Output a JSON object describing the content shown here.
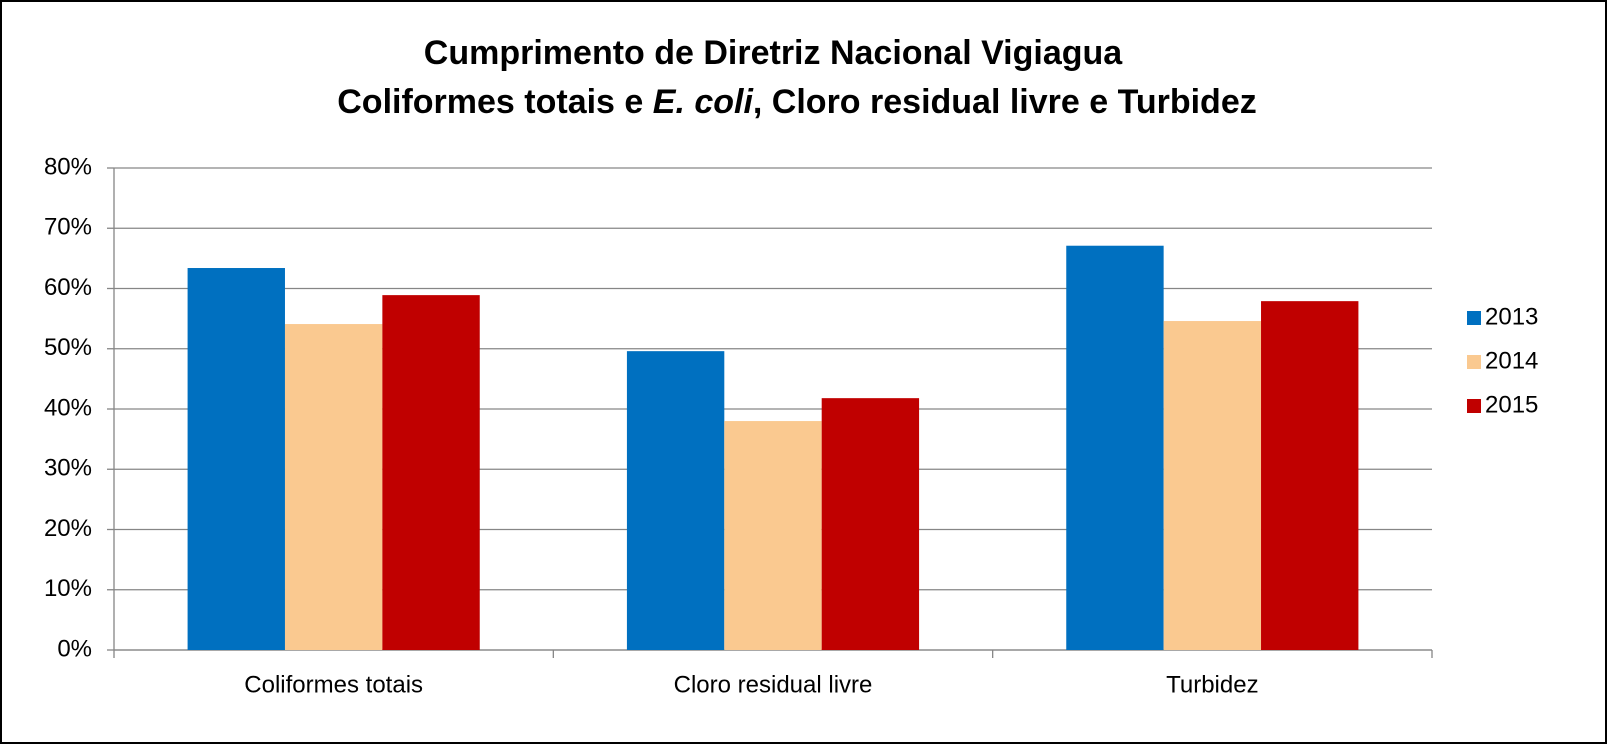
{
  "chart_data": {
    "type": "bar",
    "title": {
      "line1": "Cumprimento de Diretriz Nacional Vigiagua",
      "line2": [
        "Coliformes totais e ",
        "E. coli",
        ", Cloro residual livre e Turbidez"
      ]
    },
    "categories": [
      "Coliformes totais",
      "Cloro residual livre",
      "Turbidez"
    ],
    "series": [
      {
        "name": "2013",
        "color": "#0070c0",
        "values": [
          63.4,
          49.6,
          67.1
        ]
      },
      {
        "name": "2014",
        "color": "#fac990",
        "values": [
          54.1,
          38.0,
          54.6
        ]
      },
      {
        "name": "2015",
        "color": "#c00000",
        "values": [
          58.9,
          41.8,
          57.9
        ]
      }
    ],
    "ylim": [
      0,
      80
    ],
    "yticks": [
      {
        "value": 0,
        "label": "0%"
      },
      {
        "value": 10,
        "label": "10%"
      },
      {
        "value": 20,
        "label": "20%"
      },
      {
        "value": 30,
        "label": "30%"
      },
      {
        "value": 40,
        "label": "40%"
      },
      {
        "value": 50,
        "label": "50%"
      },
      {
        "value": 60,
        "label": "60%"
      },
      {
        "value": 70,
        "label": "70%"
      },
      {
        "value": 80,
        "label": "80%"
      }
    ],
    "grid": true,
    "legend": "right"
  }
}
